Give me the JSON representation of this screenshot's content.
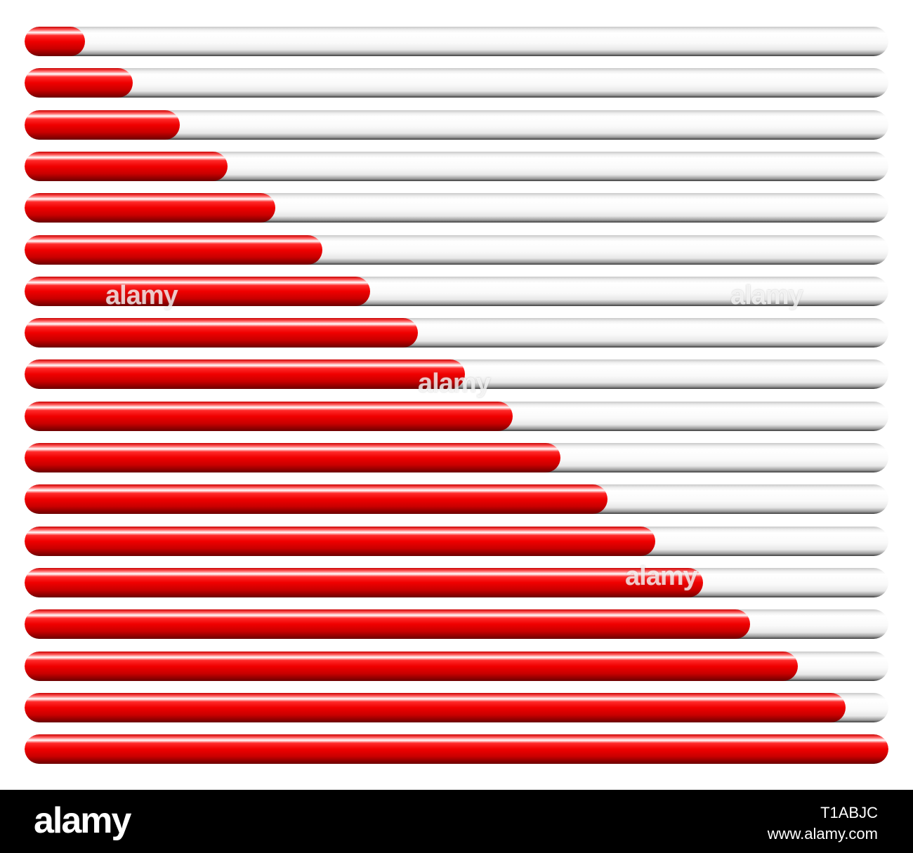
{
  "progress_bars": {
    "fill_color": "#e00000",
    "track_color": "#f5f5f5",
    "levels": [
      0.07,
      0.125,
      0.18,
      0.235,
      0.29,
      0.345,
      0.4,
      0.455,
      0.51,
      0.565,
      0.62,
      0.675,
      0.73,
      0.785,
      0.84,
      0.895,
      0.95,
      1.0
    ]
  },
  "watermark": {
    "text": "alamy"
  },
  "footer": {
    "logo": "alamy",
    "image_id": "T1ABJC",
    "url": "www.alamy.com"
  }
}
